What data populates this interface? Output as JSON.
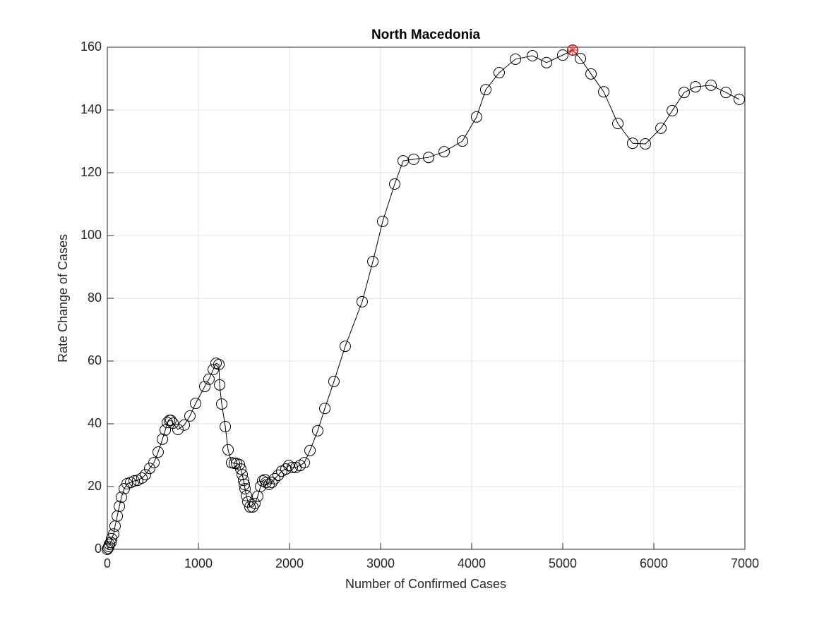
{
  "chart_data": {
    "type": "line",
    "title": "North Macedonia",
    "x_label": "Number of Confirmed Cases",
    "y_label": "Rate Change of Cases",
    "xlim": [
      0,
      7000
    ],
    "ylim": [
      0,
      160
    ],
    "xticks": [
      0,
      1000,
      2000,
      3000,
      4000,
      5000,
      6000,
      7000
    ],
    "yticks": [
      0,
      20,
      40,
      60,
      80,
      100,
      120,
      140,
      160
    ],
    "grid": true,
    "x": [
      0,
      8,
      16,
      23,
      39,
      47,
      70,
      85,
      109,
      132,
      155,
      186,
      217,
      256,
      295,
      333,
      380,
      419,
      465,
      512,
      558,
      605,
      636,
      659,
      682,
      698,
      721,
      775,
      845,
      907,
      969,
      1070,
      1116,
      1163,
      1194,
      1225,
      1233,
      1256,
      1295,
      1326,
      1364,
      1395,
      1419,
      1450,
      1465,
      1481,
      1496,
      1504,
      1512,
      1527,
      1543,
      1566,
      1597,
      1620,
      1651,
      1682,
      1705,
      1729,
      1744,
      1775,
      1806,
      1837,
      1876,
      1915,
      1961,
      1992,
      2031,
      2070,
      2116,
      2163,
      2225,
      2310,
      2388,
      2488,
      2612,
      2798,
      2915,
      3023,
      3155,
      3248,
      3364,
      3527,
      3698,
      3899,
      4054,
      4155,
      4302,
      4481,
      4667,
      4822,
      5000,
      5109,
      5194,
      5310,
      5450,
      5605,
      5767,
      5907,
      6078,
      6202,
      6333,
      6457,
      6628,
      6791,
      6938
    ],
    "series": [
      {
        "color": "#000000",
        "values": [
          0,
          0.4,
          0.9,
          1.6,
          2.2,
          3.4,
          4.9,
          7.4,
          10.6,
          13.7,
          16.6,
          19.3,
          20.9,
          21.3,
          21.8,
          22.0,
          22.7,
          23.8,
          25.8,
          27.6,
          31.0,
          35.1,
          38.0,
          40.4,
          41.1,
          41.1,
          40.2,
          38.2,
          39.6,
          42.5,
          46.5,
          51.9,
          54.2,
          57.3,
          59.3,
          58.9,
          52.4,
          46.3,
          39.1,
          31.7,
          27.6,
          27.4,
          27.4,
          27.0,
          25.6,
          23.8,
          22.0,
          20.7,
          19.3,
          17.1,
          15.1,
          13.5,
          13.5,
          14.6,
          16.9,
          20.0,
          21.8,
          22.2,
          21.3,
          20.7,
          21.3,
          22.5,
          23.6,
          24.9,
          25.6,
          26.7,
          26.1,
          26.1,
          26.7,
          27.6,
          31.5,
          37.8,
          44.9,
          53.5,
          64.7,
          78.9,
          91.7,
          104.5,
          116.4,
          123.8,
          124.3,
          124.9,
          126.7,
          130.1,
          137.8,
          146.5,
          151.9,
          156.2,
          157.3,
          155.1,
          157.5,
          159.1,
          156.4,
          151.5,
          145.8,
          135.7,
          129.4,
          129.2,
          134.2,
          139.8,
          145.6,
          147.4,
          147.9,
          145.6,
          143.4
        ]
      }
    ],
    "highlight": {
      "x": 5109,
      "y": 159.1,
      "color": "#e8262b"
    }
  }
}
